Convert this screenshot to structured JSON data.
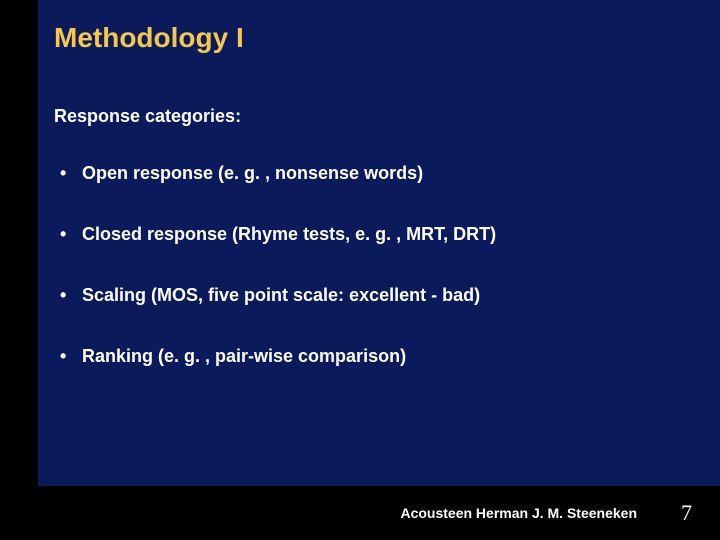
{
  "colors": {
    "slide_bg": "#0a1a5a",
    "footer_bg": "#000000",
    "left_stripe_bg": "#000000",
    "title_color": "#f5c84c",
    "body_text_color": "#ffffff",
    "footer_text_color": "#ffffff",
    "page_number_color": "#ffffff"
  },
  "title": "Methodology I",
  "subtitle": "Response categories:",
  "bullets": [
    "Open response (e. g. , nonsense words)",
    "Closed response (Rhyme tests, e. g. , MRT, DRT)",
    "Scaling (MOS, five point scale: excellent - bad)",
    "Ranking (e. g. , pair-wise comparison)"
  ],
  "footer": {
    "text": "Acousteen Herman J. M. Steeneken",
    "page_number": "7"
  }
}
